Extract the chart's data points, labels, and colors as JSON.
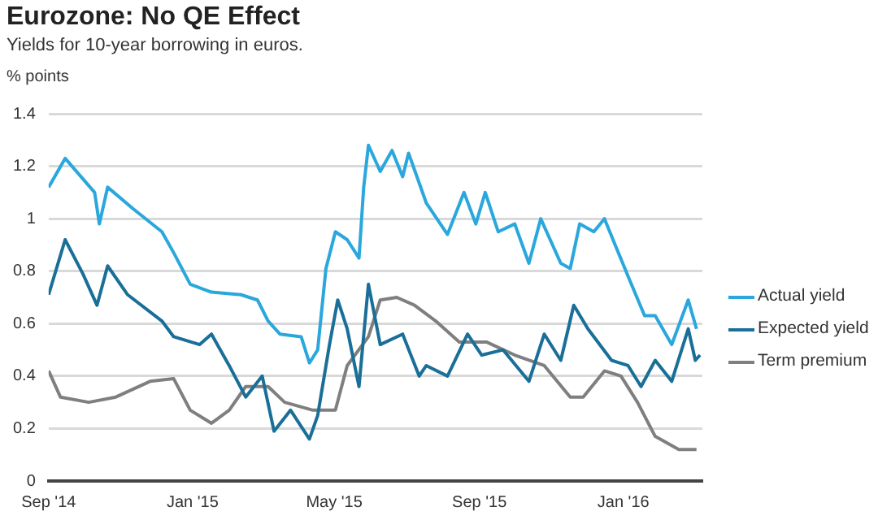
{
  "chart_data": {
    "type": "line",
    "title": "Eurozone: No QE Effect",
    "subtitle": "Yields for 10-year borrowing in euros.",
    "ylabel": "% points",
    "xlim": [
      "2014-09-01",
      "2016-03-08"
    ],
    "xticks": [
      {
        "value": "2014-09-01",
        "label": "Sep '14"
      },
      {
        "value": "2015-01-01",
        "label": "Jan '15"
      },
      {
        "value": "2015-05-01",
        "label": "May '15"
      },
      {
        "value": "2015-09-01",
        "label": "Sep '15"
      },
      {
        "value": "2016-01-01",
        "label": "Jan '16"
      }
    ],
    "ylim": [
      0,
      1.4
    ],
    "yticks": [
      0,
      0.2,
      0.4,
      0.6,
      0.8,
      1,
      1.2,
      1.4
    ],
    "grid": "y",
    "legend": "right",
    "marker": "none",
    "line_style": "solid",
    "series": [
      {
        "name": "Actual yield",
        "color": "#2aa7dc",
        "x": [
          "2014-09-01",
          "2014-09-15",
          "2014-10-10",
          "2014-10-14",
          "2014-10-21",
          "2014-11-11",
          "2014-12-06",
          "2014-12-16",
          "2014-12-30",
          "2015-01-17",
          "2015-02-11",
          "2015-02-25",
          "2015-03-06",
          "2015-03-16",
          "2015-04-03",
          "2015-04-10",
          "2015-04-17",
          "2015-04-24",
          "2015-05-02",
          "2015-05-12",
          "2015-05-22",
          "2015-05-26",
          "2015-05-30",
          "2015-06-09",
          "2015-06-19",
          "2015-06-28",
          "2015-07-03",
          "2015-07-18",
          "2015-08-05",
          "2015-08-19",
          "2015-08-29",
          "2015-09-06",
          "2015-09-17",
          "2015-10-01",
          "2015-10-13",
          "2015-10-23",
          "2015-11-09",
          "2015-11-17",
          "2015-11-25",
          "2015-12-07",
          "2015-12-16",
          "2015-12-26",
          "2016-01-06",
          "2016-01-19",
          "2016-01-28",
          "2016-02-11",
          "2016-02-25",
          "2016-03-03"
        ],
        "values": [
          1.12,
          1.23,
          1.1,
          0.98,
          1.12,
          1.04,
          0.95,
          0.87,
          0.75,
          0.72,
          0.71,
          0.69,
          0.61,
          0.56,
          0.55,
          0.45,
          0.5,
          0.81,
          0.95,
          0.92,
          0.85,
          1.12,
          1.28,
          1.18,
          1.26,
          1.16,
          1.25,
          1.06,
          0.94,
          1.1,
          0.98,
          1.1,
          0.95,
          0.98,
          0.83,
          1.0,
          0.83,
          0.81,
          0.98,
          0.95,
          1.0,
          0.89,
          0.77,
          0.63,
          0.63,
          0.52,
          0.69,
          0.58
        ]
      },
      {
        "name": "Expected yield",
        "color": "#1a6f99",
        "x": [
          "2014-09-01",
          "2014-09-15",
          "2014-09-30",
          "2014-10-12",
          "2014-10-21",
          "2014-11-07",
          "2014-12-06",
          "2014-12-16",
          "2015-01-07",
          "2015-01-17",
          "2015-02-01",
          "2015-02-15",
          "2015-03-01",
          "2015-03-11",
          "2015-03-25",
          "2015-04-10",
          "2015-04-17",
          "2015-04-27",
          "2015-05-04",
          "2015-05-12",
          "2015-05-22",
          "2015-05-30",
          "2015-06-09",
          "2015-06-28",
          "2015-07-12",
          "2015-07-18",
          "2015-08-05",
          "2015-08-22",
          "2015-09-03",
          "2015-09-21",
          "2015-10-13",
          "2015-10-26",
          "2015-11-09",
          "2015-11-20",
          "2015-12-02",
          "2015-12-22",
          "2016-01-05",
          "2016-01-16",
          "2016-01-28",
          "2016-02-11",
          "2016-02-25",
          "2016-03-02",
          "2016-03-06"
        ],
        "values": [
          0.71,
          0.92,
          0.79,
          0.67,
          0.82,
          0.71,
          0.61,
          0.55,
          0.52,
          0.56,
          0.44,
          0.32,
          0.4,
          0.19,
          0.27,
          0.16,
          0.25,
          0.52,
          0.69,
          0.58,
          0.36,
          0.75,
          0.52,
          0.56,
          0.4,
          0.44,
          0.4,
          0.56,
          0.48,
          0.5,
          0.38,
          0.56,
          0.46,
          0.67,
          0.58,
          0.46,
          0.44,
          0.36,
          0.46,
          0.38,
          0.58,
          0.46,
          0.48
        ]
      },
      {
        "name": "Term premium",
        "color": "#7f7f7f",
        "x": [
          "2014-09-01",
          "2014-09-11",
          "2014-10-05",
          "2014-10-28",
          "2014-11-26",
          "2014-12-16",
          "2014-12-30",
          "2015-01-17",
          "2015-02-01",
          "2015-02-15",
          "2015-03-06",
          "2015-03-20",
          "2015-04-13",
          "2015-05-02",
          "2015-05-12",
          "2015-05-30",
          "2015-06-09",
          "2015-06-23",
          "2015-07-08",
          "2015-07-26",
          "2015-08-15",
          "2015-09-07",
          "2015-10-01",
          "2015-10-26",
          "2015-11-17",
          "2015-11-28",
          "2015-12-16",
          "2015-12-30",
          "2016-01-13",
          "2016-01-28",
          "2016-02-17",
          "2016-03-03"
        ],
        "values": [
          0.42,
          0.32,
          0.3,
          0.32,
          0.38,
          0.39,
          0.27,
          0.22,
          0.27,
          0.36,
          0.36,
          0.3,
          0.27,
          0.27,
          0.44,
          0.55,
          0.69,
          0.7,
          0.67,
          0.61,
          0.53,
          0.53,
          0.48,
          0.44,
          0.32,
          0.32,
          0.42,
          0.4,
          0.3,
          0.17,
          0.12,
          0.12
        ]
      }
    ]
  }
}
